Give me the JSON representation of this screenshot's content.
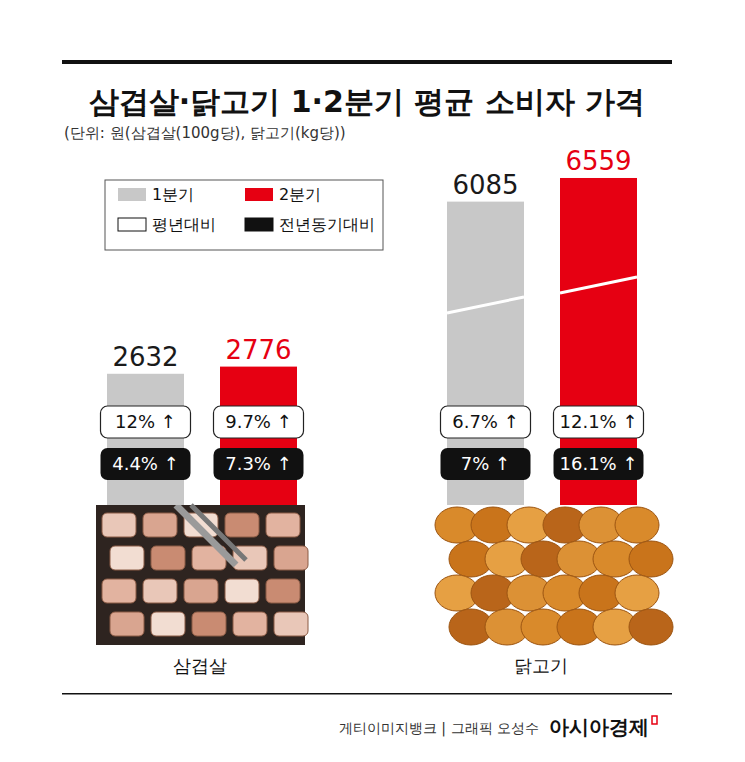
{
  "chart_data": {
    "type": "bar",
    "title": "삼겹살·닭고기 1·2분기 평균 소비자 가격",
    "subtitle": "(단위: 원(삼겹살(100g당), 닭고기(kg당))",
    "categories": [
      "삼겹살",
      "닭고기"
    ],
    "series": [
      {
        "name": "1분기",
        "color": "#c8c8c8",
        "values": [
          2632,
          6085
        ],
        "vs_normal": [
          12,
          6.7
        ],
        "vs_normal_labels": [
          "12% ↑",
          "6.7% ↑"
        ],
        "vs_last_year": [
          4.4,
          7
        ],
        "vs_last_year_labels": [
          "4.4% ↑",
          "7% ↑"
        ]
      },
      {
        "name": "2분기",
        "color": "#e60012",
        "values": [
          2776,
          6559
        ],
        "vs_normal": [
          9.7,
          12.1
        ],
        "vs_normal_labels": [
          "9.7% ↑",
          "12.1% ↑"
        ],
        "vs_last_year": [
          7.3,
          16.1
        ],
        "vs_last_year_labels": [
          "7.3% ↑",
          "16.1% ↑"
        ]
      }
    ],
    "comparisons": {
      "vs_normal": "평년대비",
      "vs_last_year": "전년동기대비"
    },
    "ylim": [
      0,
      7000
    ],
    "tick_labels": false,
    "data_labels": true,
    "legend": "top-left",
    "source": "게티이미지뱅크 | 그래픽 오성수",
    "publisher": "아시아경제"
  }
}
